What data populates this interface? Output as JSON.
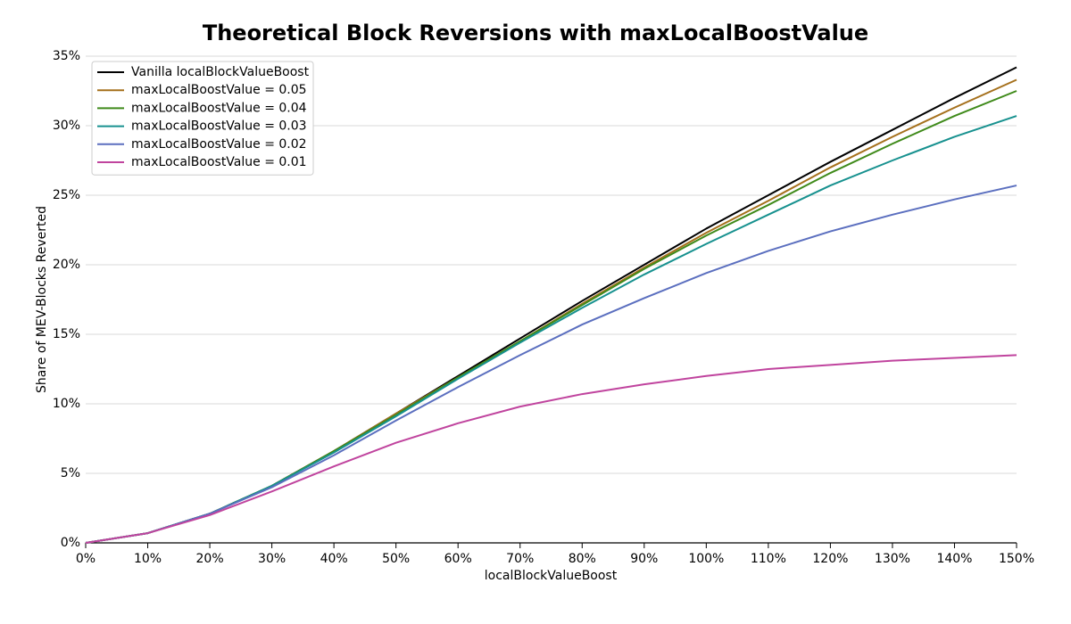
{
  "chart_data": {
    "type": "line",
    "title": "Theoretical Block Reversions with maxLocalBoostValue",
    "x_label": "localBlockValueBoost",
    "y_label": "Share of MEV-Blocks Reverted",
    "x": [
      0,
      10,
      20,
      30,
      40,
      50,
      60,
      70,
      80,
      90,
      100,
      110,
      120,
      130,
      140,
      150
    ],
    "series": [
      {
        "name": "Vanilla localBlockValueBoost",
        "color": "#000000",
        "values": [
          0,
          0.7,
          2.1,
          4.1,
          6.6,
          9.3,
          12.0,
          14.7,
          17.4,
          20.0,
          22.6,
          25.0,
          27.4,
          29.7,
          32.0,
          34.2
        ]
      },
      {
        "name": "maxLocalBoostValue = 0.05",
        "color": "#a5701c",
        "values": [
          0,
          0.7,
          2.1,
          4.1,
          6.6,
          9.3,
          11.9,
          14.5,
          17.2,
          19.8,
          22.3,
          24.6,
          27.0,
          29.2,
          31.3,
          33.3
        ]
      },
      {
        "name": "maxLocalBoostValue = 0.04",
        "color": "#3f8a1a",
        "values": [
          0,
          0.7,
          2.1,
          4.1,
          6.6,
          9.2,
          11.9,
          14.5,
          17.1,
          19.7,
          22.1,
          24.3,
          26.6,
          28.7,
          30.7,
          32.5
        ]
      },
      {
        "name": "maxLocalBoostValue = 0.03",
        "color": "#17918f",
        "values": [
          0,
          0.7,
          2.1,
          4.1,
          6.5,
          9.1,
          11.8,
          14.4,
          16.9,
          19.3,
          21.5,
          23.6,
          25.7,
          27.5,
          29.2,
          30.7
        ]
      },
      {
        "name": "maxLocalBoostValue = 0.02",
        "color": "#5b6fbf",
        "values": [
          0,
          0.7,
          2.1,
          4.0,
          6.3,
          8.8,
          11.2,
          13.5,
          15.7,
          17.6,
          19.4,
          21.0,
          22.4,
          23.6,
          24.7,
          25.7
        ]
      },
      {
        "name": "maxLocalBoostValue = 0.01",
        "color": "#c0449e",
        "values": [
          0,
          0.7,
          2.0,
          3.7,
          5.5,
          7.2,
          8.6,
          9.8,
          10.7,
          11.4,
          12.0,
          12.5,
          12.8,
          13.1,
          13.3,
          13.5
        ]
      }
    ],
    "xlim": [
      0,
      150
    ],
    "xticks": [
      {
        "value": 0,
        "label": "0%"
      },
      {
        "value": 10,
        "label": "10%"
      },
      {
        "value": 20,
        "label": "20%"
      },
      {
        "value": 30,
        "label": "30%"
      },
      {
        "value": 40,
        "label": "40%"
      },
      {
        "value": 50,
        "label": "50%"
      },
      {
        "value": 60,
        "label": "60%"
      },
      {
        "value": 70,
        "label": "70%"
      },
      {
        "value": 80,
        "label": "80%"
      },
      {
        "value": 90,
        "label": "90%"
      },
      {
        "value": 100,
        "label": "100%"
      },
      {
        "value": 110,
        "label": "110%"
      },
      {
        "value": 120,
        "label": "120%"
      },
      {
        "value": 130,
        "label": "130%"
      },
      {
        "value": 140,
        "label": "140%"
      },
      {
        "value": 150,
        "label": "150%"
      }
    ],
    "ylim": [
      0,
      35
    ],
    "yticks": [
      {
        "value": 0,
        "label": "0%"
      },
      {
        "value": 5,
        "label": "5%"
      },
      {
        "value": 10,
        "label": "10%"
      },
      {
        "value": 15,
        "label": "15%"
      },
      {
        "value": 20,
        "label": "20%"
      },
      {
        "value": 25,
        "label": "25%"
      },
      {
        "value": 30,
        "label": "30%"
      },
      {
        "value": 35,
        "label": "35%"
      }
    ],
    "grid": true,
    "legend": "top-left"
  }
}
